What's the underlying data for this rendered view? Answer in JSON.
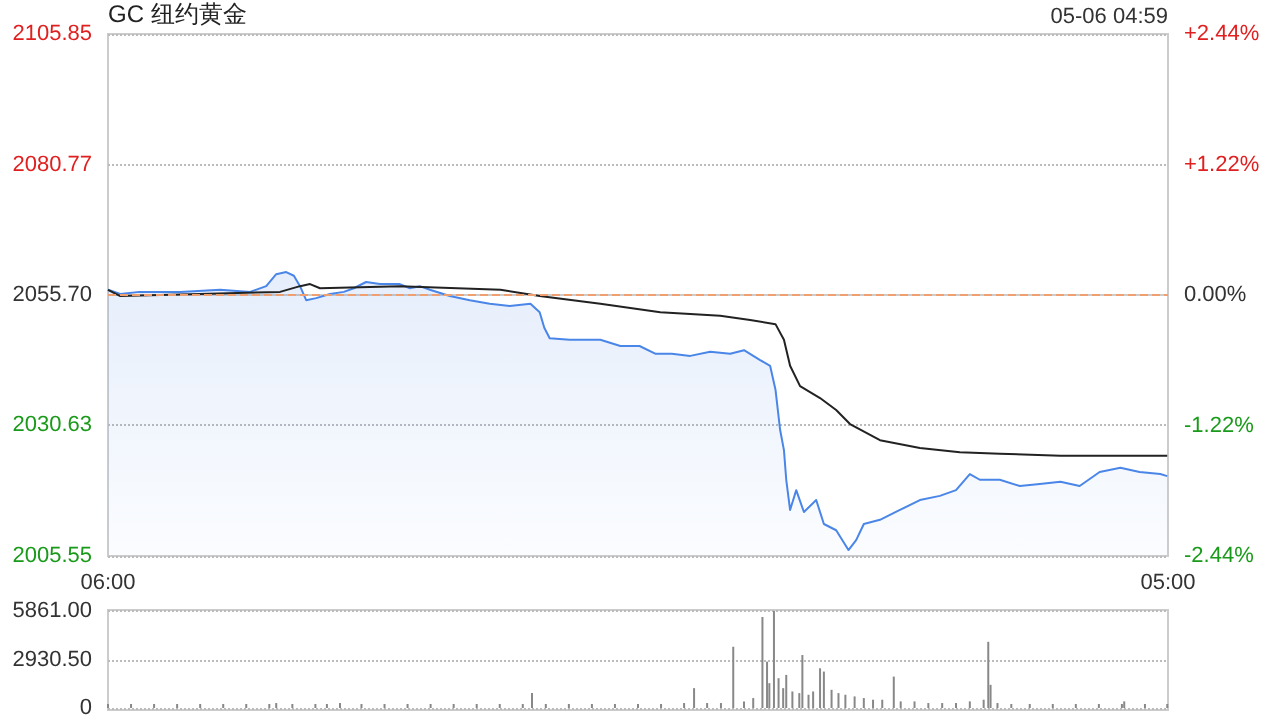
{
  "chart_data": [
    {
      "type": "line",
      "title": "GC 纽约黄金",
      "annotations": [
        "05-06 04:59"
      ],
      "marker": "none",
      "grid": "y",
      "xlim": [
        "--05-05T06:00",
        "--05-06T05:00"
      ],
      "xticks": [
        {
          "value": "--05-05T06:00",
          "label": "06:00"
        },
        {
          "value": "--05-06T05:00",
          "label": "05:00"
        }
      ],
      "ylim": [
        2005.55,
        2105.85
      ],
      "yticks": [
        2005.55,
        2030.63,
        {
          "value": 2055.7,
          "label": "2055.70"
        },
        2080.77,
        2105.85
      ],
      "y2lim": [
        -2.44,
        2.44
      ],
      "y2ticks": [
        {
          "value": -2.44,
          "label": "-2.44%"
        },
        {
          "value": -1.22,
          "label": "-1.22%"
        },
        {
          "value": 0,
          "label": "0.00%"
        },
        {
          "value": 1.22,
          "label": "+1.22%"
        },
        {
          "value": 2.44,
          "label": "+2.44%"
        }
      ],
      "ref_lines": [
        {
          "axis": "y",
          "value": 2055.7,
          "color": "#f0a070",
          "line_style": "dashed"
        }
      ],
      "series": [
        {
          "type": "area",
          "color": "#4a86e8",
          "x": [
            "--05-05T06:00",
            "--05-05T06:16",
            "--05-05T06:41",
            "--05-05T07:34",
            "--05-05T08:26",
            "--05-05T09:05",
            "--05-05T09:26",
            "--05-05T09:39",
            "--05-05T09:52",
            "--05-05T10:02",
            "--05-05T10:10",
            "--05-05T10:18",
            "--05-05T10:31",
            "--05-05T10:49",
            "--05-05T11:07",
            "--05-05T11:20",
            "--05-05T11:36",
            "--05-05T11:54",
            "--05-05T12:20",
            "--05-05T12:33",
            "--05-05T12:46",
            "--05-05T12:59",
            "--05-05T13:25",
            "--05-05T13:51",
            "--05-05T14:17",
            "--05-05T14:43",
            "--05-05T15:10",
            "--05-05T15:22",
            "--05-05T15:28",
            "--05-05T15:35",
            "--05-05T16:01",
            "--05-05T16:41",
            "--05-05T17:07",
            "--05-05T17:32",
            "--05-05T17:53",
            "--05-05T18:14",
            "--05-05T18:38",
            "--05-05T19:04",
            "--05-05T19:30",
            "--05-05T19:48",
            "--05-05T20:09",
            "--05-05T20:22",
            "--05-05T20:29",
            "--05-05T20:35",
            "--05-05T20:40",
            "--05-05T20:43",
            "--05-05T20:48",
            "--05-05T20:56",
            "--05-05T21:06",
            "--05-05T21:22",
            "--05-05T21:32",
            "--05-05T21:48",
            "--05-05T22:04",
            "--05-05T22:14",
            "--05-05T22:24",
            "--05-05T22:45",
            "--05-05T23:11",
            "--05-05T23:37",
            "--05-06T00:03",
            "--05-06T00:24",
            "--05-06T00:42",
            "--05-06T00:55",
            "--05-06T01:21",
            "--05-06T01:47",
            "--05-06T02:13",
            "--05-06T02:40",
            "--05-06T03:05",
            "--05-06T03:31",
            "--05-06T03:58",
            "--05-06T04:23",
            "--05-06T04:50",
            "--05-06T04:59"
          ],
          "values": [
            2056.7,
            2055.9,
            2056.3,
            2056.3,
            2056.7,
            2056.3,
            2057.4,
            2059.7,
            2060.1,
            2059.4,
            2057.4,
            2054.7,
            2055.1,
            2055.9,
            2056.3,
            2057.0,
            2058.2,
            2057.8,
            2057.8,
            2057.0,
            2057.4,
            2056.7,
            2055.5,
            2054.7,
            2054.0,
            2053.6,
            2054.0,
            2052.4,
            2049.4,
            2047.4,
            2047.1,
            2047.1,
            2045.9,
            2045.9,
            2044.4,
            2044.4,
            2044.0,
            2044.8,
            2044.4,
            2045.1,
            2043.2,
            2042.1,
            2037.5,
            2029.8,
            2025.9,
            2020.2,
            2014.4,
            2018.2,
            2014.0,
            2016.3,
            2011.7,
            2010.5,
            2006.7,
            2008.6,
            2011.7,
            2012.5,
            2014.4,
            2016.3,
            2017.1,
            2018.2,
            2021.3,
            2020.2,
            2020.2,
            2019.0,
            2019.4,
            2019.8,
            2019.0,
            2021.7,
            2022.5,
            2021.7,
            2021.3,
            2020.9
          ]
        },
        {
          "type": "line",
          "color": "#222222",
          "x": [
            "--05-05T06:00",
            "--05-05T06:16",
            "--05-05T08:00",
            "--05-05T09:44",
            "--05-05T10:10",
            "--05-05T10:23",
            "--05-05T10:36",
            "--05-05T12:20",
            "--05-05T14:31",
            "--05-05T15:22",
            "--05-05T16:41",
            "--05-05T17:59",
            "--05-05T19:17",
            "--05-05T19:56",
            "--05-05T20:29",
            "--05-05T20:40",
            "--05-05T20:48",
            "--05-05T21:01",
            "--05-05T21:27",
            "--05-05T21:48",
            "--05-05T22:06",
            "--05-05T22:45",
            "--05-05T23:37",
            "--05-06T00:29",
            "--05-06T01:21",
            "--05-06T02:40",
            "--05-06T03:58",
            "--05-06T04:59"
          ],
          "values": [
            2056.7,
            2055.5,
            2055.9,
            2056.3,
            2057.4,
            2057.8,
            2057.0,
            2057.4,
            2056.7,
            2055.5,
            2054.0,
            2052.4,
            2051.7,
            2050.9,
            2050.1,
            2047.1,
            2042.1,
            2038.2,
            2035.9,
            2033.6,
            2030.9,
            2027.8,
            2026.3,
            2025.5,
            2025.2,
            2024.8,
            2024.8,
            2024.8
          ]
        }
      ]
    },
    {
      "type": "bar",
      "color": "#888888",
      "grid": "y",
      "tick_labels": "y",
      "xlim": [
        "--05-05T06:00",
        "--05-06T05:00"
      ],
      "ylim": [
        0,
        5861
      ],
      "yticks": [
        0,
        {
          "value": 2930.5,
          "label": "2930.50"
        },
        {
          "value": 5861,
          "label": "5861.00"
        }
      ],
      "x": [
        "--05-05T06:00",
        "--05-05T06:30",
        "--05-05T07:00",
        "--05-05T07:30",
        "--05-05T08:00",
        "--05-05T08:30",
        "--05-05T09:00",
        "--05-05T09:30",
        "--05-05T09:39",
        "--05-05T10:00",
        "--05-05T10:30",
        "--05-05T10:45",
        "--05-05T11:02",
        "--05-05T11:30",
        "--05-05T12:00",
        "--05-05T12:30",
        "--05-05T13:00",
        "--05-05T13:30",
        "--05-05T14:00",
        "--05-05T14:30",
        "--05-05T15:00",
        "--05-05T15:12",
        "--05-05T15:30",
        "--05-05T16:00",
        "--05-05T16:30",
        "--05-05T17:00",
        "--05-05T17:30",
        "--05-05T18:00",
        "--05-05T18:30",
        "--05-05T18:43",
        "--05-05T19:00",
        "--05-05T19:18",
        "--05-05T19:34",
        "--05-05T19:48",
        "--05-05T20:00",
        "--05-05T20:12",
        "--05-05T20:18",
        "--05-05T20:21",
        "--05-05T20:27",
        "--05-05T20:33",
        "--05-05T20:39",
        "--05-05T20:43",
        "--05-05T20:51",
        "--05-05T21:00",
        "--05-05T21:04",
        "--05-05T21:12",
        "--05-05T21:18",
        "--05-05T21:27",
        "--05-05T21:32",
        "--05-05T21:42",
        "--05-05T21:51",
        "--05-05T22:00",
        "--05-05T22:12",
        "--05-05T22:24",
        "--05-05T22:36",
        "--05-05T22:48",
        "--05-05T23:03",
        "--05-05T23:12",
        "--05-05T23:30",
        "--05-05T23:48",
        "--05-06T00:06",
        "--05-06T00:24",
        "--05-06T00:42",
        "--05-06T01:00",
        "--05-06T01:06",
        "--05-06T01:09",
        "--05-06T01:18",
        "--05-06T01:36",
        "--05-06T02:00",
        "--05-06T02:30",
        "--05-06T03:00",
        "--05-06T03:30",
        "--05-06T04:00",
        "--05-06T04:03",
        "--05-06T04:30",
        "--05-06T04:59"
      ],
      "values": [
        100,
        100,
        100,
        100,
        200,
        100,
        200,
        200,
        300,
        200,
        200,
        200,
        300,
        200,
        100,
        200,
        200,
        200,
        200,
        200,
        200,
        900,
        200,
        200,
        200,
        200,
        200,
        200,
        300,
        1200,
        300,
        300,
        3700,
        400,
        600,
        5500,
        2800,
        1500,
        5861,
        1800,
        1200,
        2000,
        1000,
        900,
        3200,
        800,
        1000,
        2400,
        2200,
        1100,
        900,
        800,
        700,
        600,
        500,
        500,
        1900,
        400,
        400,
        300,
        300,
        300,
        400,
        500,
        4000,
        1400,
        300,
        200,
        200,
        200,
        200,
        200,
        100,
        400,
        100,
        100
      ]
    }
  ]
}
